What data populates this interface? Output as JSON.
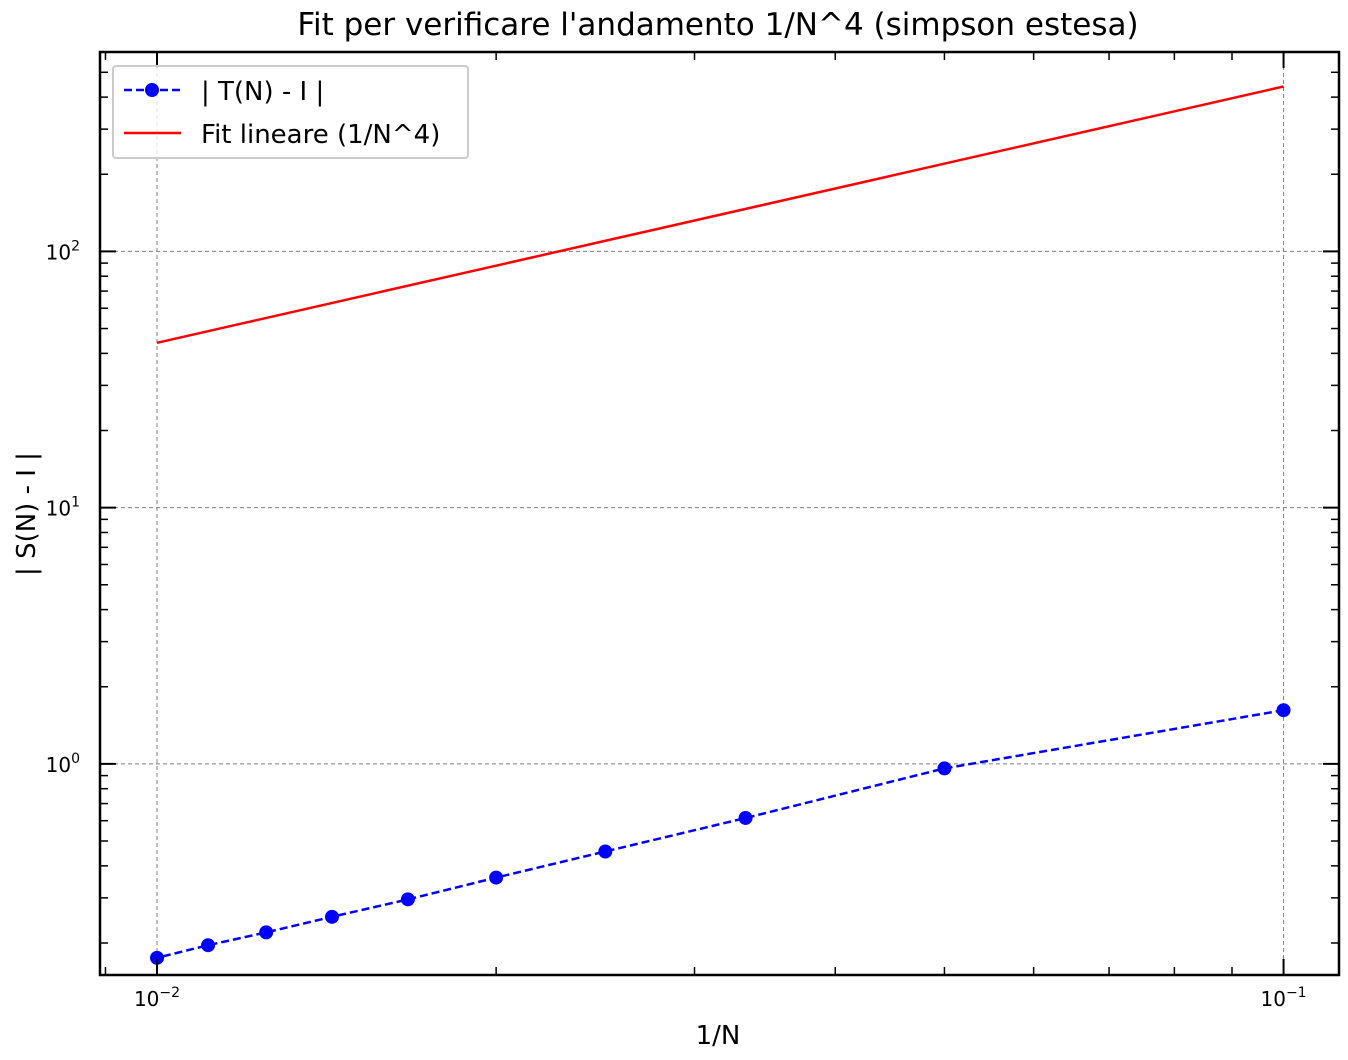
{
  "chart_data": {
    "type": "line",
    "title": "Fit per verificare l'andamento 1/N^4 (simpson estesa)",
    "xlabel": "1/N",
    "ylabel": "| S(N) - I |",
    "xscale": "log",
    "yscale": "log",
    "xlim": [
      0.0089,
      0.112
    ],
    "ylim": [
      0.15,
      600
    ],
    "grid": true,
    "legend_position": "top-left",
    "x_ticks": [
      {
        "value": 0.01,
        "base": "10",
        "exp": "−2"
      },
      {
        "value": 0.1,
        "base": "10",
        "exp": "−1"
      }
    ],
    "y_ticks": [
      {
        "value": 1,
        "base": "10",
        "exp": "0"
      },
      {
        "value": 10,
        "base": "10",
        "exp": "1"
      },
      {
        "value": 100,
        "base": "10",
        "exp": "2"
      }
    ],
    "series": [
      {
        "name": "| T(N) - I |",
        "color": "#0000ff",
        "style": "dashed",
        "marker": "circle",
        "x": [
          0.1,
          0.05,
          0.0333,
          0.025,
          0.02,
          0.0167,
          0.0143,
          0.0125,
          0.0111,
          0.01
        ],
        "y": [
          1.62,
          0.96,
          0.615,
          0.455,
          0.36,
          0.296,
          0.253,
          0.22,
          0.196,
          0.175
        ]
      },
      {
        "name": "Fit lineare (1/N^4)",
        "color": "#ff0000",
        "style": "solid",
        "marker": "none",
        "x": [
          0.01,
          0.1
        ],
        "y": [
          44,
          440
        ]
      }
    ]
  }
}
